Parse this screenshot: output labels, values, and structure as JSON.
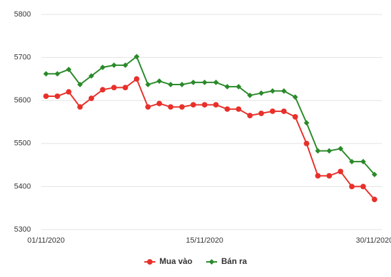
{
  "chart_data": {
    "type": "line",
    "categories": [
      "01/11/2020",
      null,
      null,
      null,
      null,
      null,
      null,
      null,
      null,
      null,
      null,
      null,
      null,
      null,
      "15/11/2020",
      null,
      null,
      null,
      null,
      null,
      null,
      null,
      null,
      null,
      null,
      null,
      null,
      null,
      null,
      "30/11/2020"
    ],
    "series": [
      {
        "name": "Mua vào",
        "color": "#e8302a",
        "marker": "circle",
        "values": [
          5610,
          5610,
          5620,
          5585,
          5605,
          5625,
          5630,
          5630,
          5650,
          5585,
          5593,
          5585,
          5585,
          5590,
          5590,
          5590,
          5580,
          5580,
          5565,
          5570,
          5575,
          5575,
          5562,
          5500,
          5425,
          5425,
          5435,
          5400,
          5400,
          5370
        ]
      },
      {
        "name": "Bán ra",
        "color": "#2a8a2a",
        "marker": "diamond",
        "values": [
          5662,
          5662,
          5672,
          5637,
          5657,
          5677,
          5682,
          5682,
          5702,
          5637,
          5645,
          5637,
          5637,
          5642,
          5642,
          5642,
          5632,
          5632,
          5612,
          5617,
          5622,
          5622,
          5608,
          5548,
          5483,
          5483,
          5488,
          5458,
          5458,
          5428
        ]
      }
    ],
    "ylim": [
      5300,
      5800
    ],
    "yticks": [
      5300,
      5400,
      5500,
      5600,
      5700,
      5800
    ],
    "grid": true
  }
}
